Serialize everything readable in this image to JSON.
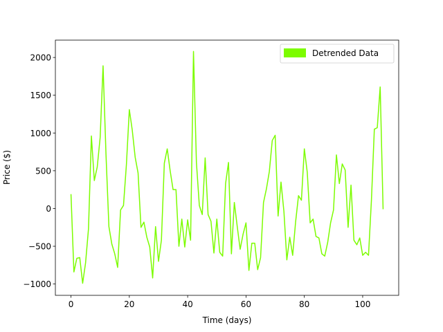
{
  "chart_data": {
    "type": "line",
    "xlabel": "Time (days)",
    "ylabel": "Price ($)",
    "xlim": [
      -5.35,
      112.35
    ],
    "ylim": [
      -1150,
      2230
    ],
    "xticks": [
      0,
      20,
      40,
      60,
      80,
      100
    ],
    "yticks": [
      -1000,
      -500,
      0,
      500,
      1000,
      1500,
      2000
    ],
    "grid": false,
    "legend_position": "top-right",
    "series": [
      {
        "name": "Detrended Data",
        "color": "#7cfc00",
        "x": [
          0,
          1,
          2,
          3,
          4,
          5,
          6,
          7,
          8,
          9,
          10,
          11,
          12,
          13,
          14,
          15,
          16,
          17,
          18,
          19,
          20,
          21,
          22,
          23,
          24,
          25,
          26,
          27,
          28,
          29,
          30,
          31,
          32,
          33,
          34,
          35,
          36,
          37,
          38,
          39,
          40,
          41,
          42,
          43,
          44,
          45,
          46,
          47,
          48,
          49,
          50,
          51,
          52,
          53,
          54,
          55,
          56,
          57,
          58,
          59,
          60,
          61,
          62,
          63,
          64,
          65,
          66,
          67,
          68,
          69,
          70,
          71,
          72,
          73,
          74,
          75,
          76,
          77,
          78,
          79,
          80,
          81,
          82,
          83,
          84,
          85,
          86,
          87,
          88,
          89,
          90,
          91,
          92,
          93,
          94,
          95,
          96,
          97,
          98,
          99,
          100,
          101,
          102,
          103,
          104,
          105,
          106,
          107
        ],
        "y": [
          190,
          -840,
          -660,
          -650,
          -990,
          -720,
          -270,
          960,
          370,
          550,
          940,
          1890,
          720,
          -240,
          -470,
          -600,
          -780,
          -20,
          40,
          580,
          1310,
          1040,
          680,
          470,
          -250,
          -180,
          -380,
          -510,
          -920,
          -240,
          -700,
          -420,
          600,
          790,
          500,
          250,
          250,
          -500,
          -140,
          -510,
          -150,
          -420,
          2080,
          610,
          40,
          -80,
          670,
          -80,
          -170,
          -590,
          -140,
          -580,
          -630,
          330,
          610,
          -600,
          80,
          -240,
          -540,
          -340,
          -190,
          -820,
          -460,
          -460,
          -810,
          -650,
          80,
          260,
          490,
          900,
          970,
          -100,
          350,
          -40,
          -680,
          -380,
          -620,
          -180,
          170,
          110,
          790,
          480,
          -190,
          -140,
          -370,
          -390,
          -600,
          -630,
          -450,
          -190,
          -20,
          710,
          330,
          590,
          510,
          -250,
          310,
          -420,
          -480,
          -390,
          -620,
          -580,
          -620,
          110,
          1050,
          1070,
          1610,
          -10
        ]
      }
    ]
  }
}
